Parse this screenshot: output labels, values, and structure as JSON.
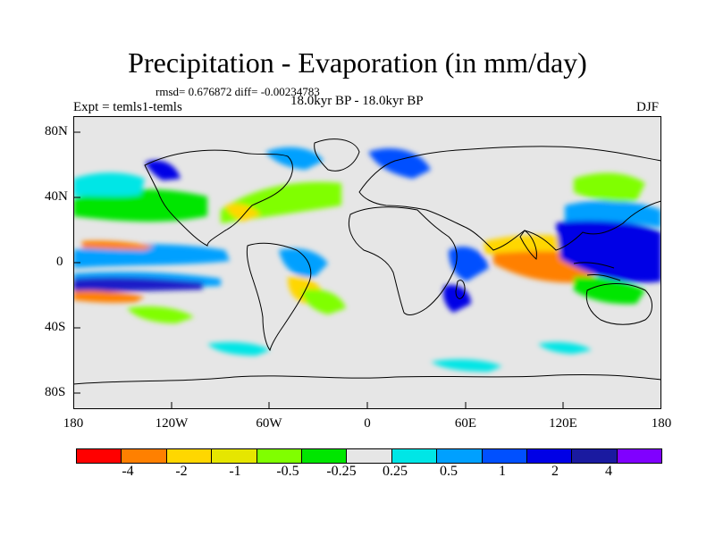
{
  "title": "Precipitation - Evaporation (in mm/day)",
  "stats": "rmsd= 0.676872 diff= -0.00234783",
  "experiment": "Expt = temls1-temls",
  "period": "18.0kyr BP - 18.0kyr BP",
  "season": "DJF",
  "lat_labels": [
    "80N",
    "40N",
    "0",
    "40S",
    "80S"
  ],
  "lon_labels": [
    "180",
    "120W",
    "60W",
    "0",
    "60E",
    "120E",
    "180"
  ],
  "map_background": "#e6e6e6",
  "colorbar": {
    "colors": [
      "#ff0000",
      "#ff8000",
      "#ffd700",
      "#e6e600",
      "#80ff00",
      "#00e600",
      "#e6e6e6",
      "#00e6e6",
      "#00a0ff",
      "#0050ff",
      "#0000e6",
      "#1a1aa0",
      "#8000ff"
    ],
    "labels": [
      "-4",
      "-2",
      "-1",
      "-0.5",
      "-0.25",
      "0.25",
      "0.5",
      "1",
      "2",
      "4"
    ]
  }
}
